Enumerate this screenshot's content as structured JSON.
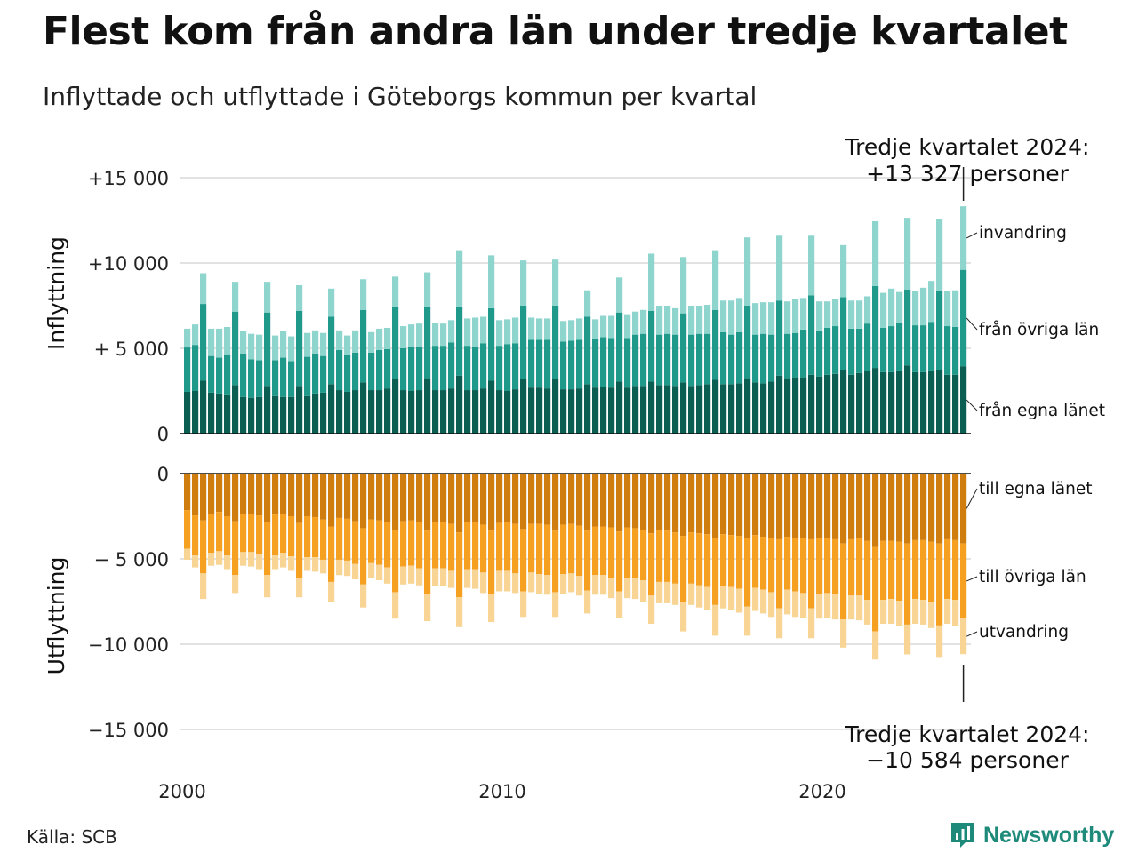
{
  "title": "Flest kom från andra län under tredje kvartalet",
  "subtitle": "Inflyttade och utflyttade i Göteborgs kommun per kvartal",
  "source": "Källa: SCB",
  "brand": "Newsworthy",
  "colors": {
    "in_own_county": "#0b5e52",
    "in_other_counties": "#1f9a8a",
    "in_immigration": "#8ed5ce",
    "out_own_county": "#d07d0f",
    "out_other_counties": "#f5a020",
    "out_emigration": "#f8d595",
    "brand": "#1e8a7a"
  },
  "icons": {
    "logo": "bar-chart-speech-bubble-icon"
  },
  "annotations": {
    "top": [
      "Tredje kvartalet 2024:",
      "+13 327 personer"
    ],
    "bottom": [
      "Tredje kvartalet 2024:",
      "−10 584 personer"
    ]
  },
  "chart_data": [
    {
      "type": "bar",
      "stacked": true,
      "ylabel": "Inflyttning",
      "ylim": [
        0,
        15000
      ],
      "yticks": [
        0,
        5000,
        10000,
        15000
      ],
      "ytick_labels": [
        "0",
        "+ 5 000",
        "+10 000",
        "+15 000"
      ],
      "x_start": 2000,
      "x_frequency": "quarter",
      "xticks": [
        2000,
        2010,
        2020
      ],
      "grid": true,
      "series": [
        {
          "name": "från egna länet",
          "values": [
            2450,
            2500,
            3100,
            2400,
            2350,
            2300,
            2850,
            2150,
            2100,
            2150,
            2800,
            2200,
            2150,
            2150,
            2800,
            2200,
            2350,
            2400,
            2900,
            2550,
            2450,
            2550,
            3000,
            2550,
            2550,
            2650,
            3200,
            2550,
            2500,
            2550,
            3250,
            2550,
            2550,
            2650,
            3400,
            2550,
            2550,
            2650,
            3100,
            2550,
            2500,
            2600,
            3200,
            2700,
            2700,
            2650,
            3200,
            2600,
            2600,
            2650,
            2900,
            2700,
            2750,
            2700,
            3050,
            2700,
            2800,
            2800,
            3050,
            2850,
            2850,
            2800,
            3000,
            2800,
            2850,
            2900,
            3150,
            2900,
            2900,
            2950,
            3250,
            3000,
            2950,
            3050,
            3400,
            3250,
            3300,
            3300,
            3450,
            3350,
            3450,
            3500,
            3750,
            3450,
            3550,
            3650,
            3850,
            3600,
            3600,
            3700,
            4000,
            3600,
            3600,
            3700,
            3750,
            3450,
            3450,
            3950
          ]
        },
        {
          "name": "från övriga län",
          "values": [
            2600,
            2700,
            4500,
            2150,
            2100,
            2350,
            4300,
            2550,
            2250,
            2150,
            4300,
            2100,
            2300,
            2100,
            4400,
            2300,
            2350,
            2150,
            3950,
            2350,
            2150,
            2200,
            4250,
            2200,
            2350,
            2300,
            4200,
            2450,
            2600,
            2550,
            4150,
            2600,
            2600,
            2700,
            4050,
            2600,
            2550,
            2650,
            4250,
            2600,
            2750,
            2700,
            4300,
            2800,
            2800,
            2850,
            4300,
            2800,
            2850,
            2850,
            3950,
            2850,
            2900,
            2900,
            4050,
            2900,
            3000,
            3050,
            4150,
            2950,
            3000,
            3000,
            4050,
            3000,
            3000,
            2950,
            4100,
            3050,
            2900,
            3000,
            4250,
            2800,
            2900,
            2750,
            4400,
            2600,
            2600,
            2800,
            4650,
            2700,
            2750,
            2800,
            4250,
            2700,
            2600,
            2800,
            4800,
            2600,
            2700,
            2800,
            4450,
            2750,
            2750,
            2850,
            4600,
            2850,
            2800,
            5650
          ]
        },
        {
          "name": "invandring",
          "values": [
            1100,
            1200,
            1800,
            1600,
            1700,
            1600,
            1750,
            1300,
            1500,
            1500,
            1800,
            1450,
            1550,
            1450,
            1500,
            1400,
            1350,
            1350,
            1650,
            1150,
            1150,
            1300,
            1800,
            1200,
            1250,
            1250,
            1800,
            1300,
            1300,
            1350,
            2050,
            1350,
            1300,
            1300,
            3300,
            1600,
            1700,
            1550,
            3100,
            1500,
            1450,
            1500,
            2650,
            1300,
            1250,
            1250,
            2700,
            1200,
            1200,
            1250,
            1550,
            1150,
            1250,
            1300,
            2050,
            1400,
            1350,
            1400,
            3350,
            1700,
            1650,
            1550,
            3300,
            1700,
            1650,
            1700,
            3500,
            1850,
            2000,
            2000,
            4000,
            1850,
            1850,
            1900,
            3800,
            1900,
            2000,
            1850,
            3500,
            1700,
            1550,
            1600,
            3050,
            1650,
            1650,
            1600,
            3800,
            2050,
            2200,
            1800,
            4200,
            2000,
            2200,
            2400,
            4200,
            2050,
            2150,
            3727
          ]
        }
      ]
    },
    {
      "type": "bar",
      "stacked": true,
      "ylabel": "Utflyttning",
      "ylim": [
        -15000,
        0
      ],
      "yticks": [
        0,
        -5000,
        -10000,
        -15000
      ],
      "ytick_labels": [
        "0",
        "− 5 000",
        "−10 000",
        "−15 000"
      ],
      "x_start": 2000,
      "x_frequency": "quarter",
      "xticks": [
        2000,
        2010,
        2020
      ],
      "grid": true,
      "series": [
        {
          "name": "till egna länet",
          "values": [
            -2150,
            -2450,
            -2750,
            -2350,
            -2250,
            -2500,
            -2800,
            -2350,
            -2350,
            -2450,
            -2850,
            -2400,
            -2350,
            -2500,
            -2900,
            -2500,
            -2550,
            -2700,
            -3100,
            -2600,
            -2650,
            -2800,
            -3200,
            -2700,
            -2750,
            -2850,
            -3300,
            -2800,
            -2750,
            -2850,
            -3350,
            -2850,
            -2850,
            -2950,
            -3450,
            -2850,
            -2850,
            -3000,
            -3350,
            -2900,
            -2850,
            -2950,
            -3250,
            -2950,
            -2950,
            -3000,
            -3350,
            -3000,
            -2950,
            -3050,
            -3350,
            -3100,
            -3100,
            -3150,
            -3400,
            -3150,
            -3200,
            -3300,
            -3500,
            -3300,
            -3350,
            -3450,
            -3650,
            -3450,
            -3500,
            -3550,
            -3750,
            -3550,
            -3600,
            -3650,
            -3750,
            -3600,
            -3700,
            -3800,
            -3850,
            -3700,
            -3750,
            -3800,
            -3850,
            -3800,
            -3750,
            -3850,
            -4100,
            -3850,
            -3800,
            -3950,
            -4300,
            -3950,
            -3950,
            -4000,
            -4100,
            -3900,
            -3900,
            -4000,
            -4100,
            -3850,
            -3900,
            -4100
          ]
        },
        {
          "name": "till övriga län",
          "values": [
            -2250,
            -2350,
            -3100,
            -2300,
            -2300,
            -2300,
            -3150,
            -2250,
            -2250,
            -2300,
            -3100,
            -2400,
            -2300,
            -2350,
            -3200,
            -2400,
            -2350,
            -2350,
            -3250,
            -2450,
            -2450,
            -2500,
            -3300,
            -2550,
            -2600,
            -2650,
            -3650,
            -2650,
            -2650,
            -2700,
            -3700,
            -2700,
            -2700,
            -2750,
            -3800,
            -2750,
            -2750,
            -2800,
            -3700,
            -2800,
            -2850,
            -2900,
            -3650,
            -2850,
            -2950,
            -2950,
            -3600,
            -2900,
            -2900,
            -2950,
            -3500,
            -2850,
            -2850,
            -2950,
            -3500,
            -2950,
            -2950,
            -2950,
            -3650,
            -3050,
            -3000,
            -3000,
            -3850,
            -3000,
            -3050,
            -3100,
            -3950,
            -3050,
            -3050,
            -3100,
            -4050,
            -3100,
            -3100,
            -3150,
            -4050,
            -3100,
            -3150,
            -3200,
            -4050,
            -3250,
            -3250,
            -3200,
            -4450,
            -3300,
            -3350,
            -3450,
            -4950,
            -3450,
            -3400,
            -3450,
            -4750,
            -3450,
            -3500,
            -3500,
            -4800,
            -3500,
            -3500,
            -4400
          ]
        },
        {
          "name": "utvandring",
          "values": [
            -650,
            -700,
            -1500,
            -750,
            -800,
            -800,
            -1050,
            -800,
            -850,
            -850,
            -1300,
            -800,
            -850,
            -850,
            -1150,
            -800,
            -850,
            -800,
            -1150,
            -900,
            -900,
            -900,
            -1350,
            -900,
            -900,
            -950,
            -1550,
            -1050,
            -1050,
            -1000,
            -1600,
            -1050,
            -1050,
            -1000,
            -1750,
            -1100,
            -1150,
            -1200,
            -1650,
            -1200,
            -1200,
            -1150,
            -1500,
            -1150,
            -1150,
            -1150,
            -1450,
            -1150,
            -1100,
            -1150,
            -1350,
            -1150,
            -1150,
            -1200,
            -1550,
            -1200,
            -1200,
            -1250,
            -1650,
            -1250,
            -1250,
            -1250,
            -1750,
            -1250,
            -1300,
            -1350,
            -1800,
            -1300,
            -1350,
            -1400,
            -1700,
            -1350,
            -1400,
            -1450,
            -1750,
            -1450,
            -1500,
            -1450,
            -1750,
            -1450,
            -1450,
            -1500,
            -1650,
            -1400,
            -1450,
            -1450,
            -1650,
            -1400,
            -1450,
            -1500,
            -1750,
            -1450,
            -1450,
            -1550,
            -1850,
            -1450,
            -1550,
            -2084
          ]
        }
      ]
    }
  ]
}
